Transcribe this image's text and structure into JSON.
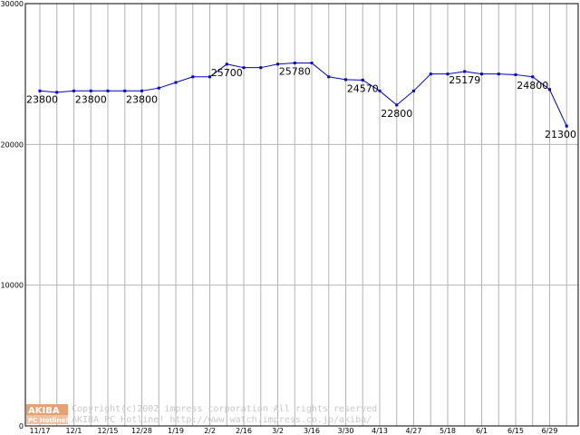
{
  "chart_data": {
    "type": "line",
    "xlabel": "",
    "ylabel": "",
    "ylim": [
      0,
      30000
    ],
    "y_ticks": [
      "0",
      "10000",
      "20000",
      "30000"
    ],
    "y_tick_values": [
      0,
      10000,
      20000,
      30000
    ],
    "x_tick_labels": [
      "11/17",
      "12/1",
      "12/15",
      "12/28",
      "1/19",
      "2/2",
      "2/16",
      "3/2",
      "3/16",
      "3/30",
      "4/13",
      "4/27",
      "5/18",
      "6/1",
      "6/15",
      "6/29"
    ],
    "grid": true,
    "colors": {
      "line": "#0000cc",
      "grid": "#b4b4b4",
      "frame": "#000000",
      "logo": "#e8a070"
    },
    "series": [
      {
        "values": [
          23800,
          23700,
          23800,
          23800,
          23800,
          23800,
          23800,
          24000,
          24400,
          24800,
          24800,
          25700,
          25450,
          25450,
          25700,
          25780,
          25780,
          24800,
          24600,
          24570,
          23800,
          22800,
          23800,
          25000,
          25000,
          25179,
          25000,
          25000,
          24950,
          24800,
          23900,
          21300
        ]
      }
    ],
    "data_labels": [
      {
        "index": 0,
        "text": "23800"
      },
      {
        "index": 3,
        "text": "23800"
      },
      {
        "index": 6,
        "text": "23800"
      },
      {
        "index": 11,
        "text": "25700"
      },
      {
        "index": 15,
        "text": "25780"
      },
      {
        "index": 19,
        "text": "24570"
      },
      {
        "index": 21,
        "text": "22800"
      },
      {
        "index": 25,
        "text": "25179"
      },
      {
        "index": 29,
        "text": "24800"
      },
      {
        "index": 31,
        "text": "21300"
      }
    ]
  },
  "footer": {
    "logo_top": "AKIBA",
    "logo_bottom": "PC Hotline!",
    "line1": "Copyright(c)2002 impress corporation All rights reserved.",
    "line2": "AKIBA PC Hotline!  http://www.watch.impress.co.jp/akiba/"
  }
}
